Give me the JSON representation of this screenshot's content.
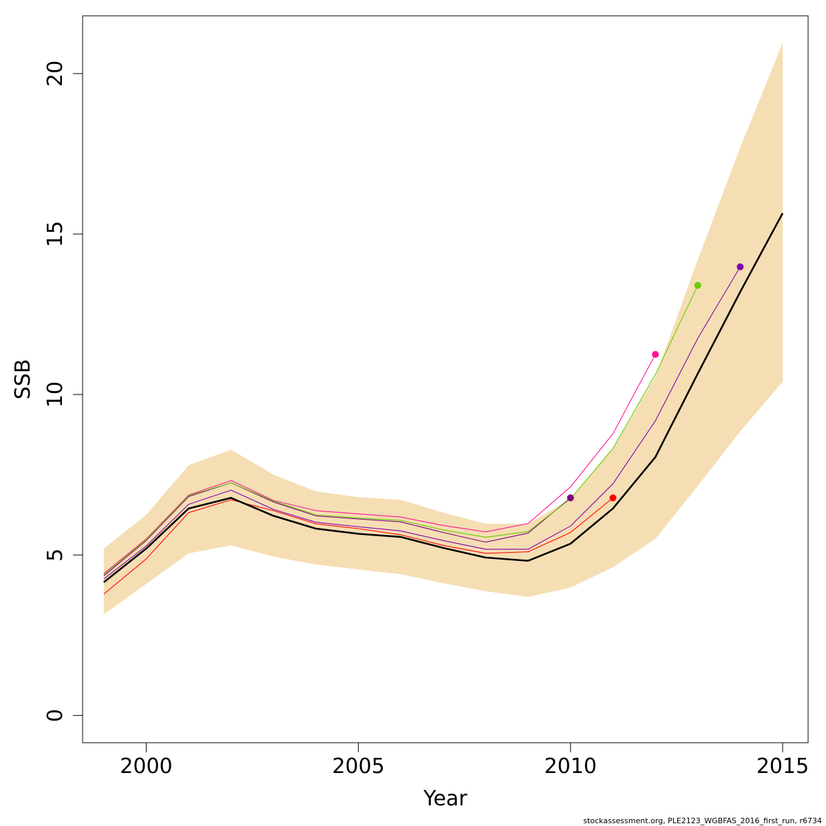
{
  "chart_data": {
    "type": "line",
    "title": "",
    "xlabel": "Year",
    "ylabel": "SSB",
    "xlim": [
      1998.5,
      2015.6
    ],
    "ylim": [
      -0.85,
      21.8
    ],
    "xticks": [
      2000,
      2005,
      2010,
      2015
    ],
    "yticks": [
      0,
      5,
      10,
      15,
      20
    ],
    "grid": false,
    "legend": "none",
    "band": {
      "color": "#F5DEB3",
      "x": [
        1999,
        2000,
        2001,
        2002,
        2003,
        2004,
        2005,
        2006,
        2007,
        2008,
        2009,
        2010,
        2011,
        2012,
        2013,
        2014,
        2015
      ],
      "lower": [
        3.15,
        4.1,
        5.05,
        5.3,
        4.95,
        4.7,
        4.55,
        4.4,
        4.12,
        3.87,
        3.69,
        3.98,
        4.62,
        5.5,
        7.15,
        8.85,
        10.4
      ],
      "upper": [
        5.2,
        6.25,
        7.8,
        8.28,
        7.5,
        6.98,
        6.8,
        6.72,
        6.32,
        5.97,
        5.97,
        6.75,
        8.3,
        10.55,
        14.2,
        17.7,
        20.95
      ]
    },
    "series": [
      {
        "color": "#000000",
        "width": 2.6,
        "x": [
          1999,
          2000,
          2001,
          2002,
          2003,
          2004,
          2005,
          2006,
          2007,
          2008,
          2009,
          2010,
          2011,
          2012,
          2013,
          2014,
          2015
        ],
        "values": [
          4.15,
          5.2,
          6.45,
          6.78,
          6.22,
          5.82,
          5.66,
          5.56,
          5.22,
          4.92,
          4.82,
          5.35,
          6.45,
          8.05,
          10.65,
          13.2,
          15.65
        ]
      },
      {
        "color": "#FF0000",
        "width": 1.1,
        "x": [
          1999,
          2000,
          2001,
          2002,
          2003,
          2004,
          2005,
          2006,
          2007,
          2008,
          2009,
          2010,
          2011
        ],
        "values": [
          3.78,
          4.88,
          6.32,
          6.72,
          6.38,
          5.97,
          5.82,
          5.63,
          5.3,
          5.05,
          5.1,
          5.7,
          6.78
        ],
        "end_marker": true
      },
      {
        "color": "#800080",
        "width": 1.1,
        "x": [
          1999,
          2000,
          2001,
          2002,
          2003,
          2004,
          2005,
          2006,
          2007,
          2008,
          2009,
          2010
        ],
        "values": [
          4.35,
          5.45,
          6.82,
          7.25,
          6.65,
          6.22,
          6.12,
          6.03,
          5.7,
          5.4,
          5.68,
          6.78
        ],
        "end_marker": true
      },
      {
        "color": "#FF1493",
        "width": 1.1,
        "x": [
          1999,
          2000,
          2001,
          2002,
          2003,
          2004,
          2005,
          2006,
          2007,
          2008,
          2009,
          2010,
          2011,
          2012
        ],
        "values": [
          4.42,
          5.5,
          6.87,
          7.32,
          6.7,
          6.38,
          6.28,
          6.18,
          5.92,
          5.72,
          5.98,
          7.12,
          8.78,
          11.25
        ],
        "end_marker": true
      },
      {
        "color": "#66CC00",
        "width": 1.1,
        "x": [
          1999,
          2000,
          2001,
          2002,
          2003,
          2004,
          2005,
          2006,
          2007,
          2008,
          2009,
          2010,
          2011,
          2012,
          2013
        ],
        "values": [
          4.38,
          5.47,
          6.85,
          7.25,
          6.68,
          6.25,
          6.15,
          6.08,
          5.78,
          5.55,
          5.73,
          6.75,
          8.32,
          10.62,
          13.4
        ],
        "end_marker": true
      },
      {
        "color": "#7F00AF",
        "width": 1.1,
        "x": [
          1999,
          2000,
          2001,
          2002,
          2003,
          2004,
          2005,
          2006,
          2007,
          2008,
          2009,
          2010,
          2011,
          2012,
          2013,
          2014
        ],
        "values": [
          4.25,
          5.28,
          6.58,
          7.02,
          6.42,
          6.02,
          5.88,
          5.75,
          5.45,
          5.18,
          5.18,
          5.9,
          7.22,
          9.18,
          11.75,
          13.98
        ],
        "end_marker": true
      }
    ],
    "footer": "stockassessment.org, PLE2123_WGBFAS_2016_first_run, r6734"
  }
}
